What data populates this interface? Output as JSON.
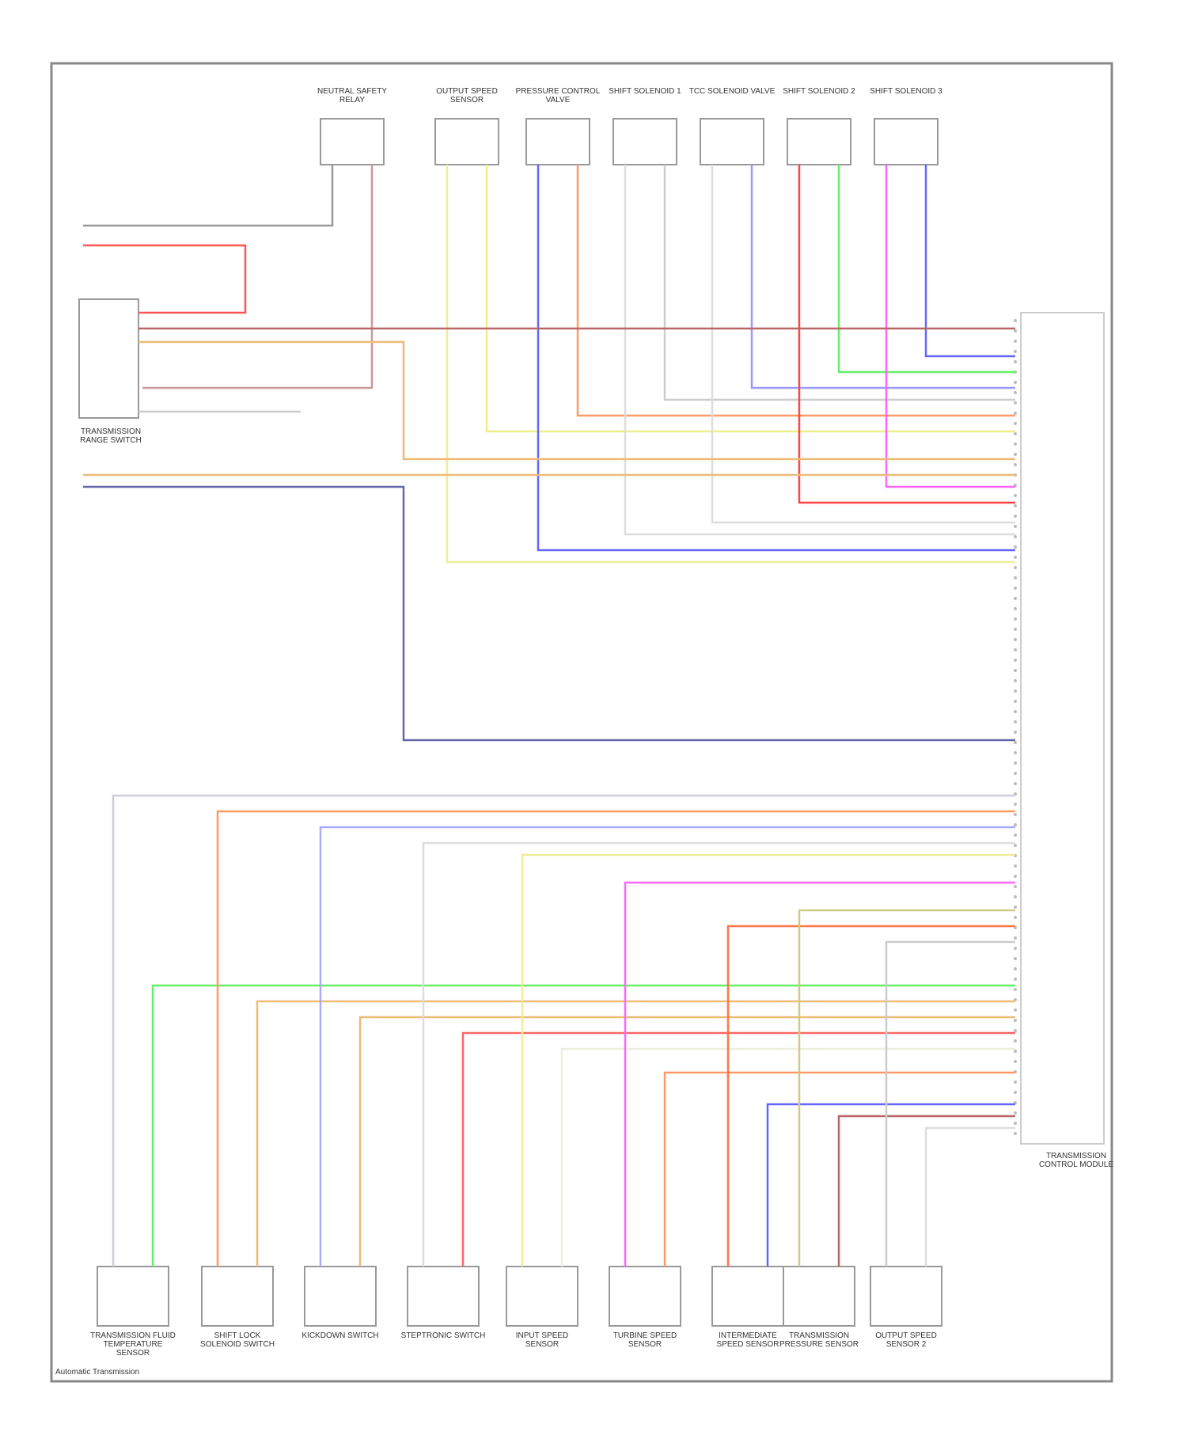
{
  "diagram": {
    "top_components": [
      {
        "label": "NEUTRAL SAFETY RELAY"
      },
      {
        "label": "OUTPUT SPEED SENSOR"
      },
      {
        "label": "PRESSURE CONTROL VALVE"
      },
      {
        "label": "SHIFT SOLENOID 1"
      },
      {
        "label": "TCC SOLENOID VALVE"
      },
      {
        "label": "SHIFT SOLENOID 2"
      },
      {
        "label": "SHIFT SOLENOID 3"
      }
    ],
    "range_switch": {
      "label": "TRANSMISSION RANGE SWITCH"
    },
    "bottom_components": [
      {
        "label": "TRANSMISSION FLUID TEMPERATURE SENSOR"
      },
      {
        "label": "SHIFT LOCK SOLENOID SWITCH"
      },
      {
        "label": "KICKDOWN SWITCH"
      },
      {
        "label": "STEPTRONIC SWITCH"
      },
      {
        "label": "INPUT SPEED SENSOR"
      },
      {
        "label": "TURBINE SPEED SENSOR"
      },
      {
        "label": "INTERMEDIATE SPEED SENSOR"
      },
      {
        "label": "TRANSMISSION PRESSURE SENSOR"
      },
      {
        "label": "OUTPUT SPEED SENSOR 2"
      }
    ],
    "connector": {
      "label": "TRANSMISSION CONTROL MODULE"
    },
    "footer": "Automatic Transmission"
  }
}
